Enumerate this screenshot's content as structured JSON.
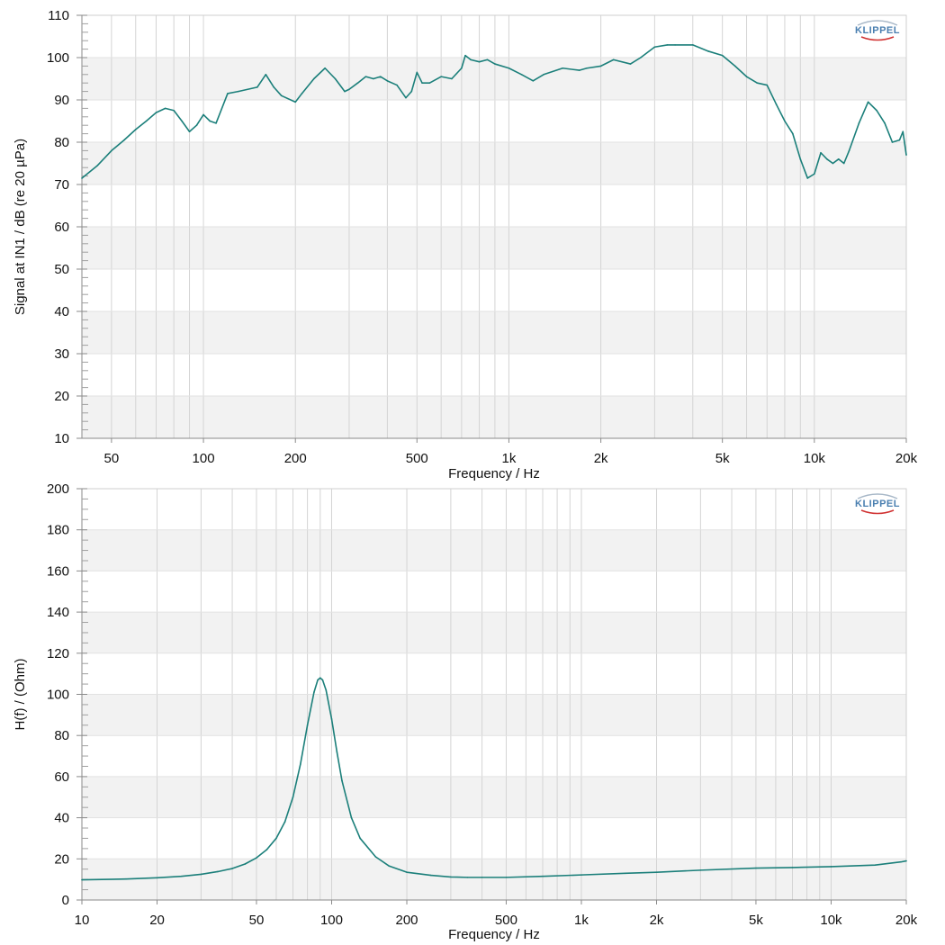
{
  "colors": {
    "series": "#1b7f7a",
    "band": "#f2f2f2",
    "grid": "#d4d4d4",
    "axis": "#8a8a8a",
    "logo": "#4a7fb0",
    "logo_swoosh": "#d03030"
  },
  "logo": {
    "text": "KLIPPEL"
  },
  "chart_data": [
    {
      "type": "line",
      "title": "",
      "xlabel": "Frequency / Hz",
      "ylabel": "Signal at IN1 / dB (re 20 µPa)",
      "xscale": "log",
      "xlim": [
        40,
        20000
      ],
      "ylim": [
        10,
        110
      ],
      "grid": true,
      "alternating_bands": true,
      "yticks": [
        10,
        20,
        30,
        40,
        50,
        60,
        70,
        80,
        90,
        100,
        110
      ],
      "xticks": [
        {
          "v": 50,
          "label": "50"
        },
        {
          "v": 100,
          "label": "100"
        },
        {
          "v": 200,
          "label": "200"
        },
        {
          "v": 500,
          "label": "500"
        },
        {
          "v": 1000,
          "label": "1k"
        },
        {
          "v": 2000,
          "label": "2k"
        },
        {
          "v": 5000,
          "label": "5k"
        },
        {
          "v": 10000,
          "label": "10k"
        },
        {
          "v": 20000,
          "label": "20k"
        }
      ],
      "series": [
        {
          "x": [
            40,
            45,
            50,
            55,
            60,
            65,
            70,
            75,
            80,
            85,
            90,
            95,
            100,
            105,
            110,
            120,
            130,
            150,
            160,
            170,
            180,
            200,
            210,
            230,
            250,
            270,
            290,
            300,
            320,
            340,
            360,
            380,
            400,
            430,
            460,
            480,
            500,
            520,
            550,
            600,
            650,
            700,
            720,
            750,
            800,
            850,
            900,
            1000,
            1100,
            1200,
            1300,
            1500,
            1700,
            1800,
            2000,
            2200,
            2500,
            2700,
            3000,
            3300,
            3500,
            4000,
            4500,
            5000,
            5500,
            6000,
            6500,
            7000,
            7500,
            8000,
            8500,
            9000,
            9500,
            10000,
            10500,
            11000,
            11500,
            12000,
            12500,
            13000,
            14000,
            15000,
            16000,
            17000,
            18000,
            19000,
            19500,
            20000
          ],
          "y": [
            71.5,
            74.5,
            78,
            80.5,
            83,
            85,
            87,
            88,
            87.5,
            85,
            82.5,
            84,
            86.5,
            85,
            84.5,
            91.5,
            92,
            93,
            96,
            93,
            91,
            89.5,
            91.5,
            95,
            97.5,
            95,
            92,
            92.5,
            94,
            95.5,
            95,
            95.5,
            94.5,
            93.5,
            90.5,
            92,
            96.5,
            94,
            94,
            95.5,
            95,
            97.5,
            100.5,
            99.5,
            99,
            99.5,
            98.5,
            97.5,
            96,
            94.5,
            96,
            97.5,
            97,
            97.5,
            98,
            99.5,
            98.5,
            100,
            102.5,
            103,
            103,
            103,
            101.5,
            100.5,
            98,
            95.5,
            94,
            93.5,
            89,
            85,
            82,
            76,
            71.5,
            72.5,
            77.5,
            76,
            75,
            76,
            75,
            78,
            84.5,
            89.5,
            87.5,
            84.5,
            80,
            80.5,
            82.5,
            77
          ]
        }
      ]
    },
    {
      "type": "line",
      "title": "",
      "xlabel": "Frequency / Hz",
      "ylabel": "H(f) / (Ohm)",
      "xscale": "log",
      "xlim": [
        10,
        20000
      ],
      "ylim": [
        0,
        200
      ],
      "grid": true,
      "alternating_bands": true,
      "yticks": [
        0,
        20,
        40,
        60,
        80,
        100,
        120,
        140,
        160,
        180,
        200
      ],
      "xticks": [
        {
          "v": 10,
          "label": "10"
        },
        {
          "v": 20,
          "label": "20"
        },
        {
          "v": 50,
          "label": "50"
        },
        {
          "v": 100,
          "label": "100"
        },
        {
          "v": 200,
          "label": "200"
        },
        {
          "v": 500,
          "label": "500"
        },
        {
          "v": 1000,
          "label": "1k"
        },
        {
          "v": 2000,
          "label": "2k"
        },
        {
          "v": 5000,
          "label": "5k"
        },
        {
          "v": 10000,
          "label": "10k"
        },
        {
          "v": 20000,
          "label": "20k"
        }
      ],
      "series": [
        {
          "x": [
            10,
            15,
            20,
            25,
            30,
            35,
            40,
            45,
            50,
            55,
            60,
            65,
            70,
            75,
            80,
            85,
            88,
            90,
            92,
            95,
            100,
            105,
            110,
            120,
            130,
            150,
            170,
            200,
            250,
            300,
            350,
            400,
            500,
            700,
            1000,
            1500,
            2000,
            3000,
            5000,
            7000,
            10000,
            15000,
            19000,
            20000
          ],
          "y": [
            9.8,
            10.2,
            10.8,
            11.5,
            12.5,
            13.8,
            15.3,
            17.5,
            20.5,
            24.5,
            30,
            38,
            50,
            66,
            85,
            101,
            107,
            108,
            107,
            102,
            88,
            72,
            58,
            40,
            30,
            21,
            16.5,
            13.5,
            12,
            11.2,
            11,
            11,
            11,
            11.5,
            12.2,
            13,
            13.5,
            14.5,
            15.5,
            15.8,
            16.2,
            17,
            18.5,
            19
          ]
        }
      ]
    }
  ]
}
